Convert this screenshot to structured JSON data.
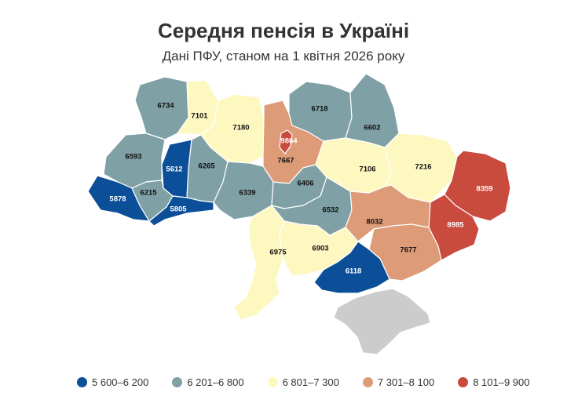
{
  "header": {
    "title": "Середня пенсія в Україні",
    "subtitle": "Дані ПФУ, станом на 1 квітня 2026 року"
  },
  "colors": {
    "bin1": "#0b4f99",
    "bin2": "#7fa0a4",
    "bin3": "#fdf8c0",
    "bin4": "#dd9b78",
    "bin5": "#c84b3e",
    "no_data": "#cccccc"
  },
  "legend": [
    {
      "label": "5 600–6 200",
      "color": "#0b4f99"
    },
    {
      "label": "6 201–6 800",
      "color": "#7fa0a4"
    },
    {
      "label": "6 801–7 300",
      "color": "#fdf8c0"
    },
    {
      "label": "7 301–8 100",
      "color": "#dd9b78"
    },
    {
      "label": "8 101–9 900",
      "color": "#c84b3e"
    }
  ],
  "regions": {
    "volyn": {
      "value": "6734"
    },
    "rivne": {
      "value": "7101"
    },
    "zhytomyr": {
      "value": "7180"
    },
    "chernihiv": {
      "value": "6718"
    },
    "sumy": {
      "value": "6602"
    },
    "kyiv_city": {
      "value": "9864"
    },
    "kyiv_oblast": {
      "value": "7667"
    },
    "lviv": {
      "value": "6593"
    },
    "ternopil": {
      "value": "5612"
    },
    "khmelnytskyi": {
      "value": "6265"
    },
    "vinnytsia": {
      "value": "6339"
    },
    "cherkasy": {
      "value": "6406"
    },
    "poltava": {
      "value": "7106"
    },
    "kharkiv": {
      "value": "7216"
    },
    "luhansk": {
      "value": "8359"
    },
    "zakarpattia": {
      "value": "5878"
    },
    "ivano_frankivsk": {
      "value": "6215"
    },
    "chernivtsi": {
      "value": "5805"
    },
    "kirovohrad": {
      "value": "6532"
    },
    "dnipropetrovsk": {
      "value": "8032"
    },
    "donetsk": {
      "value": "8985"
    },
    "zaporizhzhia": {
      "value": "7677"
    },
    "mykolaiv": {
      "value": "6903"
    },
    "odesa": {
      "value": "6975"
    },
    "kherson": {
      "value": "6118"
    },
    "crimea": {
      "value": ""
    }
  }
}
